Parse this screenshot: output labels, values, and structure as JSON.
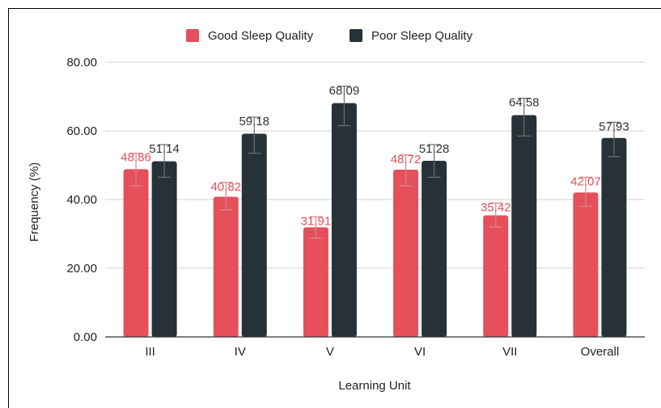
{
  "chart_data": {
    "type": "bar",
    "categories": [
      "III",
      "IV",
      "V",
      "VI",
      "VII",
      "Overall"
    ],
    "series": [
      {
        "name": "Good Sleep Quality",
        "color": "#e5505a",
        "values": [
          48.86,
          40.82,
          31.91,
          48.72,
          35.42,
          42.07
        ],
        "labels": [
          "48.86",
          "40.82",
          "31.91",
          "48.72",
          "35.42",
          "42.07"
        ],
        "error_low": [
          44.0,
          37.0,
          28.8,
          44.0,
          32.0,
          38.0
        ],
        "error_high": [
          53.5,
          45.0,
          35.0,
          53.0,
          39.0,
          46.5
        ]
      },
      {
        "name": "Poor Sleep Quality",
        "color": "#263238",
        "values": [
          51.14,
          59.18,
          68.09,
          51.28,
          64.58,
          57.93
        ],
        "labels": [
          "51.14",
          "59.18",
          "68.09",
          "51.28",
          "64.58",
          "57.93"
        ],
        "error_low": [
          46.5,
          53.5,
          61.5,
          46.5,
          58.5,
          52.5
        ],
        "error_high": [
          56.0,
          64.0,
          73.0,
          56.0,
          69.5,
          62.5
        ]
      }
    ],
    "xlabel": "Learning Unit",
    "ylabel": "Frequency (%)",
    "ylim": [
      0,
      80
    ],
    "yticks": [
      "0.00",
      "20.00",
      "40.00",
      "60.00",
      "80.00"
    ],
    "grid": true,
    "legend_position": "top"
  }
}
